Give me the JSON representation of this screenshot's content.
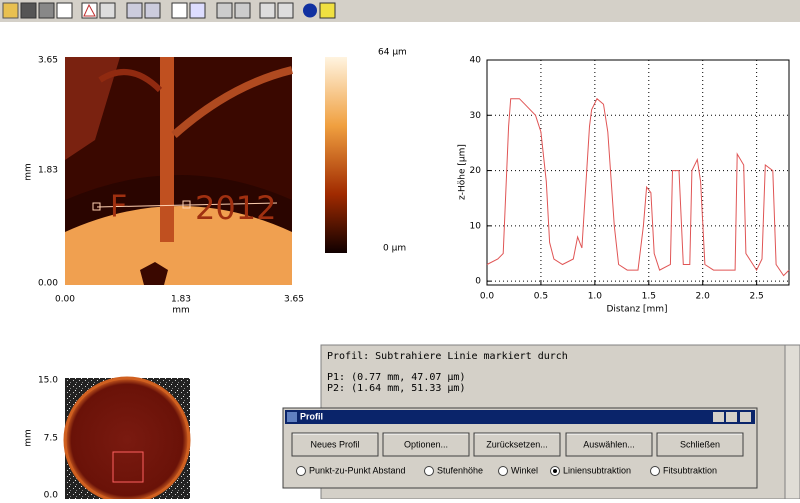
{
  "height_map": {
    "y_labels": [
      "3.65",
      "1.83",
      "0.00"
    ],
    "y_unit": "mm",
    "x_labels": [
      "0.00",
      "1.83",
      "3.65"
    ],
    "x_unit": "mm",
    "engraving": [
      "F",
      "2012"
    ],
    "colorbar": {
      "max_label": "64 µm",
      "min_label": "0 µm"
    }
  },
  "chart_data": {
    "type": "line",
    "x_label": "Distanz [mm]",
    "y_label": "z-Höhe [µm]",
    "color": "#e05555",
    "grid": true,
    "x": [
      0,
      0.1,
      0.15,
      0.2,
      0.22,
      0.3,
      0.35,
      0.45,
      0.5,
      0.55,
      0.58,
      0.62,
      0.7,
      0.8,
      0.84,
      0.88,
      0.95,
      0.97,
      1.02,
      1.08,
      1.12,
      1.18,
      1.22,
      1.3,
      1.4,
      1.45,
      1.48,
      1.52,
      1.55,
      1.6,
      1.7,
      1.72,
      1.78,
      1.82,
      1.88,
      1.9,
      1.95,
      1.98,
      2.02,
      2.1,
      2.3,
      2.32,
      2.38,
      2.4,
      2.5,
      2.55,
      2.58,
      2.65,
      2.68,
      2.75,
      2.8
    ],
    "values": [
      3,
      4,
      5,
      28,
      33,
      33,
      32,
      30,
      27,
      18,
      7,
      4,
      3,
      4,
      8,
      6,
      28,
      31,
      33,
      32,
      27,
      10,
      3,
      2,
      2,
      10,
      17,
      16,
      5,
      2,
      3,
      20,
      20,
      3,
      3,
      20,
      22,
      18,
      3,
      2,
      2,
      23,
      21,
      5,
      2,
      4,
      21,
      20,
      3,
      1,
      2
    ],
    "xlim": [
      0,
      2.8
    ],
    "ylim": [
      -0.7,
      40
    ],
    "xticks": [
      {
        "value": 0,
        "label": "0.0"
      },
      0.5,
      {
        "value": 1,
        "label": "1.0"
      },
      1.5,
      {
        "value": 2,
        "label": "2.0"
      },
      2.5
    ],
    "yticks": [
      0,
      10,
      20,
      30,
      40
    ]
  },
  "overview": {
    "y_labels": [
      "15.0",
      "7.5",
      "0.0"
    ],
    "y_unit": "mm"
  },
  "log": {
    "lines": [
      "Profil: Subtrahiere Linie markiert durch",
      "P1: (0.77 mm, 47.07 µm)",
      "P2: (1.64 mm, 51.33 µm)"
    ]
  },
  "dialog": {
    "title": "Profil",
    "buttons": [
      "Neues Profil",
      "Optionen...",
      "Zurücksetzen...",
      "Auswählen...",
      "Schließen"
    ],
    "options": [
      "Punkt-zu-Punkt Abstand",
      "Stufenhöhe",
      "Winkel",
      "Liniensubtraktion",
      "Fitsubtraktion"
    ]
  }
}
